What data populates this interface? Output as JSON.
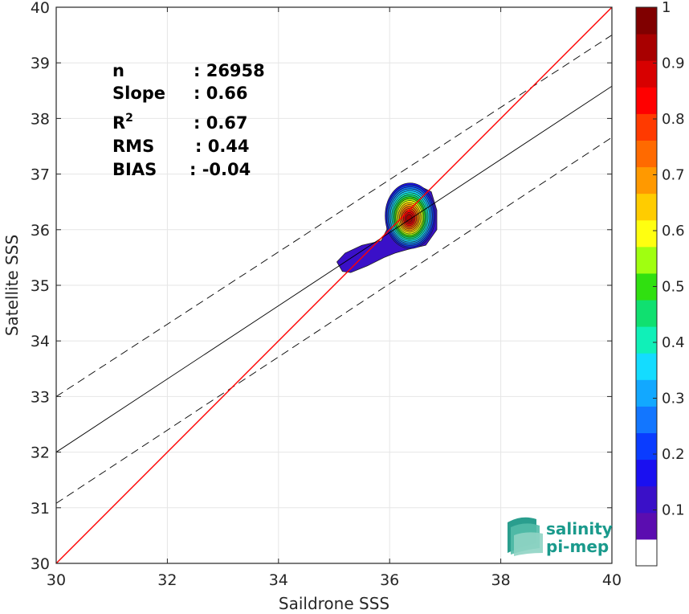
{
  "chart_data": {
    "type": "scatter",
    "subtype": "density-contour",
    "xlabel": "Saildrone SSS",
    "ylabel": "Satellite SSS",
    "xlim": [
      30,
      40
    ],
    "ylim": [
      30,
      40
    ],
    "xticks": [
      "30",
      "32",
      "34",
      "36",
      "38",
      "40"
    ],
    "yticks": [
      "30",
      "31",
      "32",
      "33",
      "34",
      "35",
      "36",
      "37",
      "38",
      "39",
      "40"
    ],
    "grid": true,
    "stats": [
      {
        "label": "n",
        "value": ": 26958"
      },
      {
        "label": "Slope",
        "value": ": 0.66"
      },
      {
        "label": "R",
        "sup": "2",
        "value": ": 0.67"
      },
      {
        "label": "RMS",
        "value": ": 0.44"
      },
      {
        "label": "BIAS",
        "value": ": -0.04"
      }
    ],
    "lines": {
      "identity": {
        "color": "#ff0000",
        "slope": 1,
        "intercept": 0
      },
      "fit": {
        "color": "#000000",
        "points": [
          [
            30,
            32.0
          ],
          [
            40,
            38.58
          ]
        ]
      },
      "fit_plus": {
        "color": "#000000",
        "style": "dashed",
        "points": [
          [
            30,
            33.0
          ],
          [
            40,
            39.5
          ]
        ]
      },
      "fit_minus": {
        "color": "#000000",
        "style": "dashed",
        "points": [
          [
            30,
            31.08
          ],
          [
            40,
            37.66
          ]
        ]
      }
    },
    "density_peak": {
      "x": 36.35,
      "y": 36.2
    },
    "colorbar": {
      "range": [
        0,
        1
      ],
      "ticks": [
        "0.1",
        "0.2",
        "0.3",
        "0.4",
        "0.5",
        "0.6",
        "0.7",
        "0.8",
        "0.9",
        "1"
      ],
      "colors": [
        "#ffffff",
        "#5b0db0",
        "#3a10c8",
        "#1a10f0",
        "#0a3cff",
        "#1276ff",
        "#12a8ff",
        "#14dcff",
        "#10f0b8",
        "#10e070",
        "#30e010",
        "#a0ff10",
        "#ffff10",
        "#ffcc00",
        "#ff9900",
        "#ff6a00",
        "#ff3a00",
        "#ff0000",
        "#d80000",
        "#a80000",
        "#800000"
      ]
    }
  },
  "logo": {
    "line1": "salinity",
    "line2": "pi-mep",
    "color": "#1a9a8c"
  }
}
